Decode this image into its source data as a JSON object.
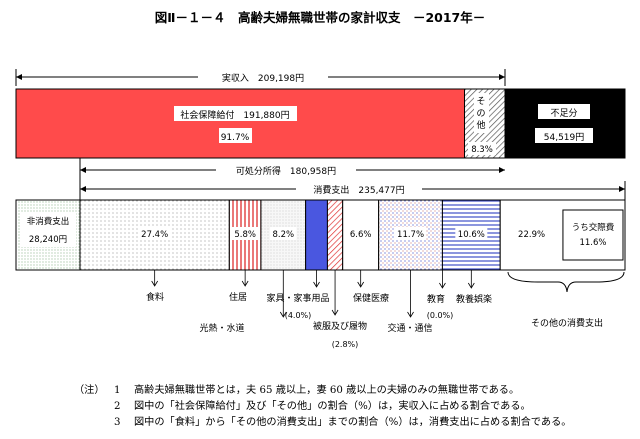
{
  "chart_data": {
    "type": "bar",
    "title": "図Ⅱ－１－４　高齢夫婦無職世帯の家計収支　－2017年－",
    "income": {
      "label": "実収入",
      "total_label": "実収入　209,198円",
      "total": 209198,
      "segments": [
        {
          "name": "社会保障給付",
          "label": "社会保障給付　191,880円",
          "value": 191880,
          "share": 91.7,
          "share_label": "91.7%",
          "color": "#ff4b4b"
        },
        {
          "name": "その他",
          "label_line1": "そ",
          "label_line2": "の",
          "label_line3": "他",
          "value": 17318,
          "share": 8.3,
          "share_label": "8.3%",
          "pattern": "diagonal-hatch"
        }
      ],
      "deficit": {
        "name": "不足分",
        "label": "不足分",
        "value": 54519,
        "value_label": "54,519円",
        "color": "#000000"
      }
    },
    "disposable_income": {
      "label": "可処分所得　180,958円",
      "value": 180958
    },
    "consumption": {
      "label": "消費支出　235,477円",
      "total": 235477,
      "categories": [
        {
          "name": "食料",
          "label": "食料",
          "share": 27.4,
          "share_label": "27.4%",
          "pattern": "dots"
        },
        {
          "name": "住居",
          "label": "住居",
          "share": 5.8,
          "share_label": "5.8%",
          "pattern": "red-vertical-stripes"
        },
        {
          "name": "光熱・水道",
          "label": "光熱・水道",
          "share": 8.2,
          "share_label": "8.2%",
          "pattern": "light-dots"
        },
        {
          "name": "家具・家事用品",
          "label": "家具・家事用品",
          "sub_label": "(4.0%)",
          "share": 4.0,
          "color": "#4a57e0"
        },
        {
          "name": "被服及び履物",
          "label": "被服及び履物",
          "sub_label": "(2.8%)",
          "share": 2.8,
          "pattern": "red-diagonal"
        },
        {
          "name": "保健医療",
          "label": "保健医療",
          "share": 6.6,
          "share_label": "6.6%",
          "pattern": "none"
        },
        {
          "name": "交通・通信",
          "label": "交通・通信",
          "share": 11.7,
          "share_label": "11.7%",
          "pattern": "blue-dots"
        },
        {
          "name": "教育",
          "label": "教育",
          "sub_label": "(0.0%)",
          "share": 0.0
        },
        {
          "name": "教養娯楽",
          "label": "教養娯楽",
          "share": 10.6,
          "share_label": "10.6%",
          "pattern": "blue-horizontal-lines"
        },
        {
          "name": "その他の消費支出",
          "label": "その他の消費支出",
          "share": 22.9,
          "share_label": "22.9%",
          "pattern": "none",
          "sub": {
            "label_line1": "うち交際費",
            "label_line2": "11.6%",
            "share": 11.6
          }
        }
      ]
    },
    "non_consumption": {
      "label_line1": "非消費支出",
      "label_line2": "28,240円",
      "value": 28240
    }
  },
  "notes": {
    "tag": "（注）",
    "items": [
      {
        "num": "1",
        "text": "高齢夫婦無職世帯とは，夫 65 歳以上，妻 60 歳以上の夫婦のみの無職世帯である。"
      },
      {
        "num": "2",
        "text": "図中の「社会保障給付」及び「その他」の割合（%）は，実収入に占める割合である。"
      },
      {
        "num": "3",
        "text": "図中の「食料」から「その他の消費支出」までの割合（%）は，消費支出に占める割合である。"
      }
    ]
  }
}
